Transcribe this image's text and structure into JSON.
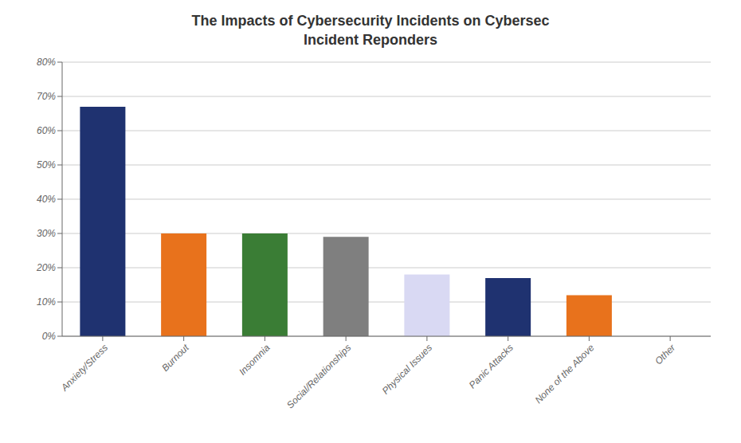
{
  "chart_data": {
    "type": "bar",
    "title": "The Impacts of Cybersecurity Incidents on Cybersec\nIncident Reponders",
    "categories": [
      "Anxiety/Stress",
      "Burnout",
      "Insomnia",
      "Social/Relationships",
      "Physical Issues",
      "Panic Attacks",
      "None of the Above",
      "Other"
    ],
    "values": [
      67,
      30,
      30,
      29,
      18,
      17,
      12,
      0
    ],
    "colors": [
      "#1F3270",
      "#E8721C",
      "#3A7D35",
      "#7F7F7F",
      "#D9D9F3",
      "#1F3270",
      "#E8721C",
      "#FFFFFF"
    ],
    "ylim": [
      0,
      80
    ],
    "yticks": [
      {
        "value": 0,
        "label": "0%"
      },
      {
        "value": 10,
        "label": "10%"
      },
      {
        "value": 20,
        "label": "20%"
      },
      {
        "value": 30,
        "label": "30%"
      },
      {
        "value": 40,
        "label": "40%"
      },
      {
        "value": 50,
        "label": "50%"
      },
      {
        "value": 60,
        "label": "60%"
      },
      {
        "value": 70,
        "label": "70%"
      },
      {
        "value": 80,
        "label": "80%"
      }
    ],
    "grid": true
  }
}
